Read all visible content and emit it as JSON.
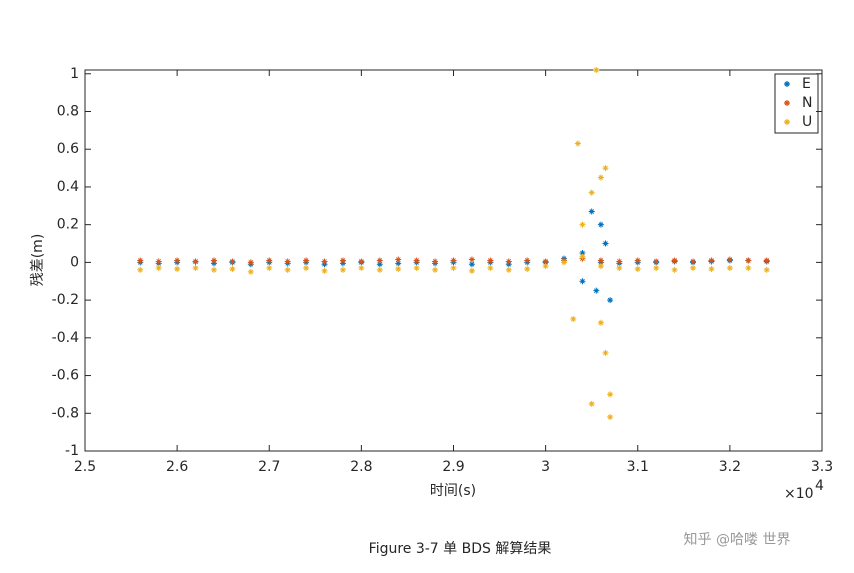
{
  "chart_data": {
    "type": "scatter",
    "xlabel": "时间(s)",
    "ylabel": "残差(m)",
    "x_multiplier": "×10",
    "x_multiplier_exp": "4",
    "caption": "Figure 3-7  单 BDS 解算结果",
    "watermark": "知乎 @哈喽 世界",
    "xlim": [
      2.5,
      3.3
    ],
    "xticks": [
      2.5,
      2.6,
      2.7,
      2.8,
      2.9,
      3,
      3.1,
      3.2,
      3.3
    ],
    "ylim": [
      -1,
      1.02
    ],
    "yticks": [
      -1,
      -0.8,
      -0.6,
      -0.4,
      -0.2,
      0,
      0.2,
      0.4,
      0.6,
      0.8,
      1
    ],
    "legend": "upper right",
    "series": [
      {
        "name": "E",
        "color": "#0072bd",
        "x": [
          2.56,
          2.58,
          2.6,
          2.62,
          2.64,
          2.66,
          2.68,
          2.7,
          2.72,
          2.74,
          2.76,
          2.78,
          2.8,
          2.82,
          2.84,
          2.86,
          2.88,
          2.9,
          2.92,
          2.94,
          2.96,
          2.98,
          3,
          3.02,
          3.04,
          3.06,
          3.08,
          3.1,
          3.12,
          3.14,
          3.16,
          3.18,
          3.2,
          3.22,
          3.24,
          3.04,
          3.05,
          3.06,
          3.07,
          3.055,
          3.065
        ],
        "values": [
          0,
          -0.005,
          0,
          0.003,
          -0.005,
          0,
          -0.01,
          0,
          -0.005,
          0,
          -0.01,
          -0.005,
          0,
          -0.01,
          -0.005,
          0,
          -0.005,
          0,
          -0.01,
          0,
          -0.01,
          0,
          0,
          0.02,
          0.05,
          0,
          -0.005,
          0,
          0,
          0.005,
          0,
          0.005,
          0.01,
          0.01,
          0.005,
          -0.1,
          0.27,
          0.2,
          -0.2,
          -0.15,
          0.1
        ]
      },
      {
        "name": "N",
        "color": "#d95319",
        "x": [
          2.56,
          2.58,
          2.6,
          2.62,
          2.64,
          2.66,
          2.68,
          2.7,
          2.72,
          2.74,
          2.76,
          2.78,
          2.8,
          2.82,
          2.84,
          2.86,
          2.88,
          2.9,
          2.92,
          2.94,
          2.96,
          2.98,
          3,
          3.02,
          3.04,
          3.06,
          3.08,
          3.1,
          3.12,
          3.14,
          3.16,
          3.18,
          3.2,
          3.22,
          3.24
        ],
        "values": [
          0.01,
          0.005,
          0.01,
          0.005,
          0.01,
          0.005,
          0,
          0.01,
          0.005,
          0.01,
          0.005,
          0.01,
          0.005,
          0.01,
          0.015,
          0.01,
          0.005,
          0.01,
          0.015,
          0.01,
          0.005,
          0.01,
          0.005,
          0.01,
          0.02,
          0.01,
          0.005,
          0.01,
          0.005,
          0.01,
          0.005,
          0.01,
          0.015,
          0.01,
          0.01
        ]
      },
      {
        "name": "U",
        "color": "#edb120",
        "x": [
          2.56,
          2.58,
          2.6,
          2.62,
          2.64,
          2.66,
          2.68,
          2.7,
          2.72,
          2.74,
          2.76,
          2.78,
          2.8,
          2.82,
          2.84,
          2.86,
          2.88,
          2.9,
          2.92,
          2.94,
          2.96,
          2.98,
          3,
          3.02,
          3.04,
          3.06,
          3.08,
          3.1,
          3.12,
          3.14,
          3.16,
          3.18,
          3.2,
          3.22,
          3.24,
          3.035,
          3.05,
          3.065,
          3.06,
          3.065,
          3.07,
          3.07,
          3.05,
          3.055,
          3.03,
          3.04,
          3.06
        ],
        "values": [
          -0.04,
          -0.03,
          -0.035,
          -0.03,
          -0.04,
          -0.035,
          -0.05,
          -0.03,
          -0.04,
          -0.03,
          -0.045,
          -0.04,
          -0.03,
          -0.04,
          -0.035,
          -0.03,
          -0.04,
          -0.03,
          -0.045,
          -0.03,
          -0.04,
          -0.035,
          -0.02,
          0,
          0.03,
          -0.02,
          -0.03,
          -0.035,
          -0.03,
          -0.04,
          -0.03,
          -0.035,
          -0.03,
          -0.03,
          -0.04,
          0.63,
          0.37,
          0.5,
          -0.32,
          -0.48,
          -0.7,
          -0.82,
          -0.75,
          1.02,
          -0.3,
          0.2,
          0.45
        ]
      }
    ]
  }
}
